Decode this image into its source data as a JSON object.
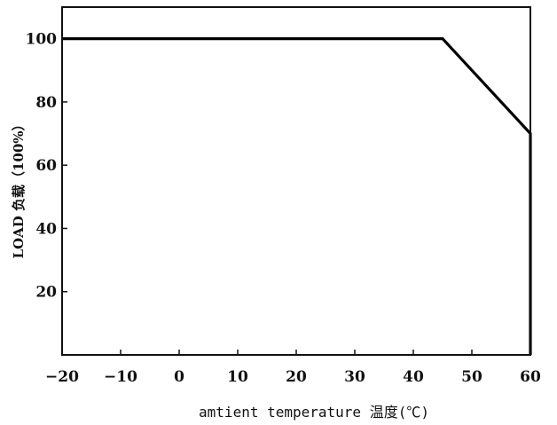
{
  "chart_data": {
    "type": "line",
    "title": "",
    "xlabel": "amtient temperature 温度(℃)",
    "ylabel": "LOAD 负载（100%）",
    "xlim": [
      -20,
      60
    ],
    "ylim": [
      0,
      110
    ],
    "x_ticks": [
      "-20",
      "-10",
      "0",
      "10",
      "20",
      "30",
      "40",
      "50",
      "60"
    ],
    "y_ticks": [
      "20",
      "40",
      "60",
      "80",
      "100"
    ],
    "grid": false,
    "series": [
      {
        "color": "#000000",
        "points": [
          {
            "x": -20,
            "y": 100
          },
          {
            "x": 45,
            "y": 100
          },
          {
            "x": 60,
            "y": 70
          },
          {
            "x": 60,
            "y": 0
          }
        ]
      }
    ]
  }
}
